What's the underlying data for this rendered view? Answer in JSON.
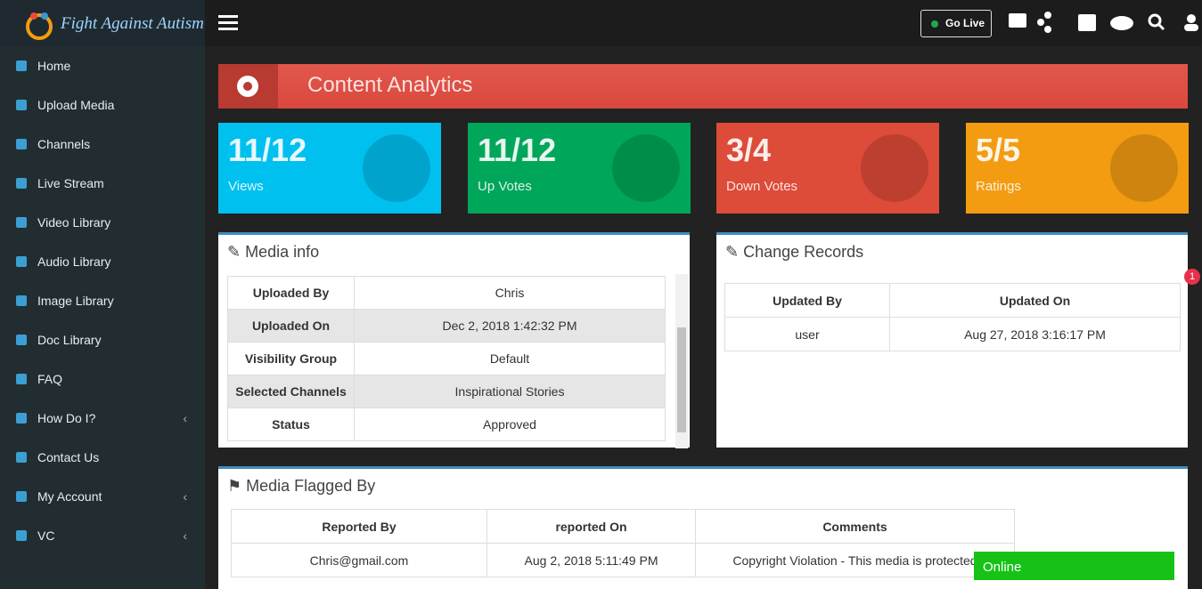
{
  "brand": "Fight Against Autism",
  "topbar": {
    "go_live": "Go Live"
  },
  "sidebar": [
    {
      "label": "Home"
    },
    {
      "label": "Upload Media"
    },
    {
      "label": "Channels"
    },
    {
      "label": "Live Stream"
    },
    {
      "label": "Video Library"
    },
    {
      "label": "Audio Library"
    },
    {
      "label": "Image Library"
    },
    {
      "label": "Doc Library"
    },
    {
      "label": "FAQ"
    },
    {
      "label": "How Do I?"
    },
    {
      "label": "Contact Us"
    },
    {
      "label": "My Account"
    },
    {
      "label": "VC"
    }
  ],
  "page_title": "Content Analytics",
  "stats": [
    {
      "value": "11/12",
      "label": "Views"
    },
    {
      "value": "11/12",
      "label": "Up Votes"
    },
    {
      "value": "3/4",
      "label": "Down Votes"
    },
    {
      "value": "5/5",
      "label": "Ratings"
    }
  ],
  "media_info": {
    "title": "Media info",
    "rows": [
      [
        "Uploaded By",
        "Chris"
      ],
      [
        "Uploaded On",
        "Dec 2, 2018 1:42:32 PM"
      ],
      [
        "Visibility Group",
        "Default"
      ],
      [
        "Selected Channels",
        "Inspirational Stories"
      ],
      [
        "Status",
        "Approved"
      ]
    ]
  },
  "change_records": {
    "title": "Change Records",
    "headers": [
      "Updated By",
      "Updated On"
    ],
    "rows": [
      [
        "user",
        "Aug 27, 2018 3:16:17 PM"
      ]
    ]
  },
  "flagged": {
    "title": "Media Flagged By",
    "headers": [
      "Reported By",
      "reported On",
      "Comments"
    ],
    "rows": [
      [
        "Chris@gmail.com",
        "Aug 2, 2018 5:11:49 PM",
        "Copyright Violation - This media is protected"
      ]
    ]
  },
  "notification_count": "1",
  "chat_status": "Online"
}
